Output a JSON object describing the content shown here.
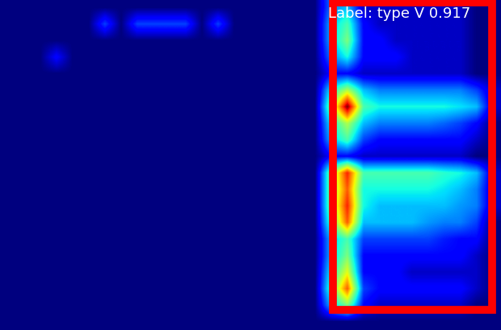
{
  "chart_data": {
    "type": "heatmap",
    "tick_labels": false,
    "annotations": [
      {
        "text": "Label: type V 0.917"
      }
    ],
    "cells": [
      [
        0.1,
        0.1,
        0.1,
        0.1,
        0.1,
        0.1,
        0.1,
        0.1,
        0.1,
        0.1,
        0.1,
        0.1,
        0.1,
        0.1,
        0.1,
        0.1,
        0.1,
        0.1,
        0.1,
        0.1,
        0.3,
        0.35,
        0.15,
        0.15,
        0.15,
        0.15,
        0.15,
        0.15,
        0.15,
        0.1,
        0.1
      ],
      [
        0.1,
        0.1,
        0.1,
        0.1,
        0.1,
        0.1,
        0.25,
        0.1,
        0.25,
        0.25,
        0.25,
        0.25,
        0.1,
        0.25,
        0.1,
        0.1,
        0.1,
        0.1,
        0.1,
        0.1,
        0.35,
        0.45,
        0.2,
        0.15,
        0.15,
        0.15,
        0.15,
        0.15,
        0.15,
        0.1,
        0.1
      ],
      [
        0.1,
        0.1,
        0.1,
        0.1,
        0.1,
        0.1,
        0.1,
        0.1,
        0.1,
        0.1,
        0.1,
        0.1,
        0.1,
        0.1,
        0.1,
        0.1,
        0.1,
        0.1,
        0.1,
        0.1,
        0.35,
        0.5,
        0.2,
        0.2,
        0.15,
        0.15,
        0.15,
        0.15,
        0.15,
        0.1,
        0.1
      ],
      [
        0.1,
        0.1,
        0.1,
        0.2,
        0.1,
        0.1,
        0.1,
        0.1,
        0.1,
        0.1,
        0.1,
        0.1,
        0.1,
        0.1,
        0.1,
        0.1,
        0.1,
        0.1,
        0.1,
        0.1,
        0.3,
        0.4,
        0.2,
        0.2,
        0.2,
        0.15,
        0.15,
        0.15,
        0.15,
        0.1,
        0.1
      ],
      [
        0.1,
        0.1,
        0.1,
        0.1,
        0.1,
        0.1,
        0.1,
        0.1,
        0.1,
        0.1,
        0.1,
        0.1,
        0.1,
        0.1,
        0.1,
        0.1,
        0.1,
        0.1,
        0.1,
        0.1,
        0.2,
        0.2,
        0.15,
        0.15,
        0.15,
        0.15,
        0.15,
        0.15,
        0.15,
        0.1,
        0.1
      ],
      [
        0.1,
        0.1,
        0.1,
        0.1,
        0.1,
        0.1,
        0.1,
        0.1,
        0.1,
        0.1,
        0.1,
        0.1,
        0.1,
        0.1,
        0.1,
        0.1,
        0.1,
        0.1,
        0.1,
        0.1,
        0.4,
        0.55,
        0.35,
        0.3,
        0.3,
        0.3,
        0.3,
        0.3,
        0.3,
        0.25,
        0.15
      ],
      [
        0.1,
        0.1,
        0.1,
        0.1,
        0.1,
        0.1,
        0.1,
        0.1,
        0.1,
        0.1,
        0.1,
        0.1,
        0.1,
        0.1,
        0.1,
        0.1,
        0.1,
        0.1,
        0.1,
        0.1,
        0.5,
        0.9,
        0.45,
        0.4,
        0.4,
        0.4,
        0.4,
        0.4,
        0.38,
        0.35,
        0.15
      ],
      [
        0.1,
        0.1,
        0.1,
        0.1,
        0.1,
        0.1,
        0.1,
        0.1,
        0.1,
        0.1,
        0.1,
        0.1,
        0.1,
        0.1,
        0.1,
        0.1,
        0.1,
        0.1,
        0.1,
        0.1,
        0.4,
        0.55,
        0.35,
        0.3,
        0.3,
        0.3,
        0.3,
        0.28,
        0.25,
        0.2,
        0.1
      ],
      [
        0.1,
        0.1,
        0.1,
        0.1,
        0.1,
        0.1,
        0.1,
        0.1,
        0.1,
        0.1,
        0.1,
        0.1,
        0.1,
        0.1,
        0.1,
        0.1,
        0.1,
        0.1,
        0.1,
        0.1,
        0.35,
        0.45,
        0.25,
        0.2,
        0.2,
        0.2,
        0.2,
        0.2,
        0.2,
        0.15,
        0.1
      ],
      [
        0.1,
        0.1,
        0.1,
        0.1,
        0.1,
        0.1,
        0.1,
        0.1,
        0.1,
        0.1,
        0.1,
        0.1,
        0.1,
        0.1,
        0.1,
        0.1,
        0.1,
        0.1,
        0.1,
        0.1,
        0.2,
        0.2,
        0.15,
        0.15,
        0.15,
        0.15,
        0.15,
        0.15,
        0.15,
        0.1,
        0.1
      ],
      [
        0.1,
        0.1,
        0.1,
        0.1,
        0.1,
        0.1,
        0.1,
        0.1,
        0.1,
        0.1,
        0.1,
        0.1,
        0.1,
        0.1,
        0.1,
        0.1,
        0.1,
        0.1,
        0.1,
        0.1,
        0.5,
        0.8,
        0.45,
        0.45,
        0.45,
        0.45,
        0.45,
        0.42,
        0.4,
        0.35,
        0.15
      ],
      [
        0.1,
        0.1,
        0.1,
        0.1,
        0.1,
        0.1,
        0.1,
        0.1,
        0.1,
        0.1,
        0.1,
        0.1,
        0.1,
        0.1,
        0.1,
        0.1,
        0.1,
        0.1,
        0.1,
        0.1,
        0.5,
        0.75,
        0.4,
        0.4,
        0.4,
        0.4,
        0.4,
        0.38,
        0.35,
        0.3,
        0.15
      ],
      [
        0.1,
        0.1,
        0.1,
        0.1,
        0.1,
        0.1,
        0.1,
        0.1,
        0.1,
        0.1,
        0.1,
        0.1,
        0.1,
        0.1,
        0.1,
        0.1,
        0.1,
        0.1,
        0.1,
        0.1,
        0.5,
        0.8,
        0.4,
        0.35,
        0.35,
        0.35,
        0.35,
        0.35,
        0.32,
        0.3,
        0.15
      ],
      [
        0.1,
        0.1,
        0.1,
        0.1,
        0.1,
        0.1,
        0.1,
        0.1,
        0.1,
        0.1,
        0.1,
        0.1,
        0.1,
        0.1,
        0.1,
        0.1,
        0.1,
        0.1,
        0.1,
        0.1,
        0.45,
        0.75,
        0.35,
        0.35,
        0.35,
        0.35,
        0.32,
        0.3,
        0.3,
        0.25,
        0.1
      ],
      [
        0.1,
        0.1,
        0.1,
        0.1,
        0.1,
        0.1,
        0.1,
        0.1,
        0.1,
        0.1,
        0.1,
        0.1,
        0.1,
        0.1,
        0.1,
        0.1,
        0.1,
        0.1,
        0.1,
        0.1,
        0.35,
        0.45,
        0.25,
        0.25,
        0.25,
        0.25,
        0.25,
        0.22,
        0.2,
        0.2,
        0.1
      ],
      [
        0.1,
        0.1,
        0.1,
        0.1,
        0.1,
        0.1,
        0.1,
        0.1,
        0.1,
        0.1,
        0.1,
        0.1,
        0.1,
        0.1,
        0.1,
        0.1,
        0.1,
        0.1,
        0.1,
        0.1,
        0.35,
        0.5,
        0.2,
        0.2,
        0.2,
        0.2,
        0.2,
        0.2,
        0.2,
        0.15,
        0.1
      ],
      [
        0.1,
        0.1,
        0.1,
        0.1,
        0.1,
        0.1,
        0.1,
        0.1,
        0.1,
        0.1,
        0.1,
        0.1,
        0.1,
        0.1,
        0.1,
        0.1,
        0.1,
        0.1,
        0.1,
        0.1,
        0.4,
        0.6,
        0.2,
        0.2,
        0.2,
        0.15,
        0.15,
        0.15,
        0.15,
        0.15,
        0.1
      ],
      [
        0.1,
        0.1,
        0.1,
        0.1,
        0.1,
        0.1,
        0.1,
        0.1,
        0.1,
        0.1,
        0.1,
        0.1,
        0.1,
        0.1,
        0.1,
        0.1,
        0.1,
        0.1,
        0.1,
        0.1,
        0.45,
        0.75,
        0.25,
        0.2,
        0.2,
        0.2,
        0.2,
        0.2,
        0.2,
        0.15,
        0.1
      ],
      [
        0.1,
        0.1,
        0.1,
        0.1,
        0.1,
        0.1,
        0.1,
        0.1,
        0.1,
        0.1,
        0.1,
        0.1,
        0.1,
        0.1,
        0.1,
        0.1,
        0.1,
        0.1,
        0.1,
        0.1,
        0.35,
        0.5,
        0.2,
        0.15,
        0.15,
        0.15,
        0.15,
        0.15,
        0.15,
        0.1,
        0.1
      ],
      [
        0.1,
        0.1,
        0.1,
        0.1,
        0.1,
        0.1,
        0.1,
        0.1,
        0.1,
        0.1,
        0.1,
        0.1,
        0.1,
        0.1,
        0.1,
        0.1,
        0.1,
        0.1,
        0.1,
        0.1,
        0.1,
        0.1,
        0.1,
        0.1,
        0.1,
        0.1,
        0.1,
        0.1,
        0.1,
        0.1,
        0.1
      ]
    ]
  }
}
